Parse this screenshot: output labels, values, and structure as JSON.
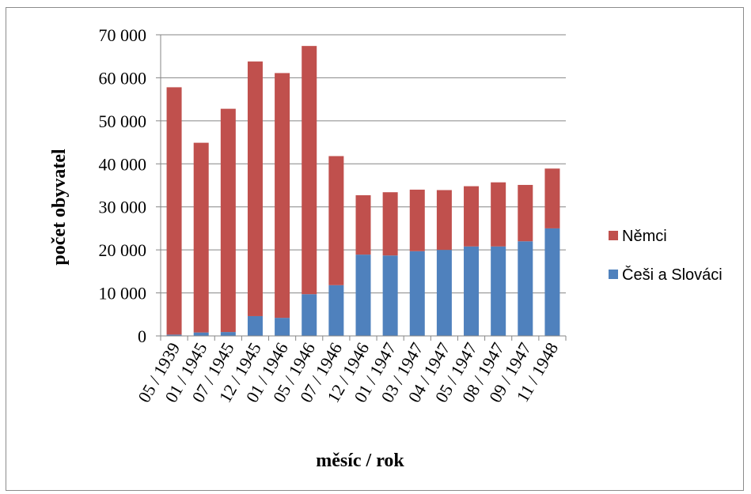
{
  "chart_data": {
    "type": "bar",
    "stacked": true,
    "categories": [
      "05 / 1939",
      "01 / 1945",
      "07 / 1945",
      "12 / 1945",
      "01 / 1946",
      "05 / 1946",
      "07 / 1946",
      "12 / 1946",
      "01 / 1947",
      "03 / 1947",
      "04 / 1947",
      "05 / 1947",
      "08 / 1947",
      "09 / 1947",
      "11 / 1948"
    ],
    "series": [
      {
        "name": "Češi a Slováci",
        "color": "#4f81bd",
        "values": [
          300,
          800,
          900,
          4600,
          4200,
          9700,
          11800,
          18900,
          18700,
          19700,
          20000,
          20800,
          20800,
          22000,
          25000
        ]
      },
      {
        "name": "Němci",
        "color": "#c0504d",
        "values": [
          57500,
          44100,
          51900,
          59200,
          56900,
          57700,
          30000,
          13800,
          14700,
          14300,
          13900,
          14000,
          14900,
          13100,
          13900
        ]
      }
    ],
    "y_ticks": [
      "0",
      "10 000",
      "20 000",
      "30 000",
      "40 000",
      "50 000",
      "60 000",
      "70 000"
    ],
    "ylim": [
      0,
      70000
    ],
    "xlabel": "měsíc / rok",
    "ylabel": "počet  obyvatel",
    "legend": [
      "Němci",
      "Češi a Slováci"
    ],
    "legend_position": "right",
    "grid": true
  }
}
